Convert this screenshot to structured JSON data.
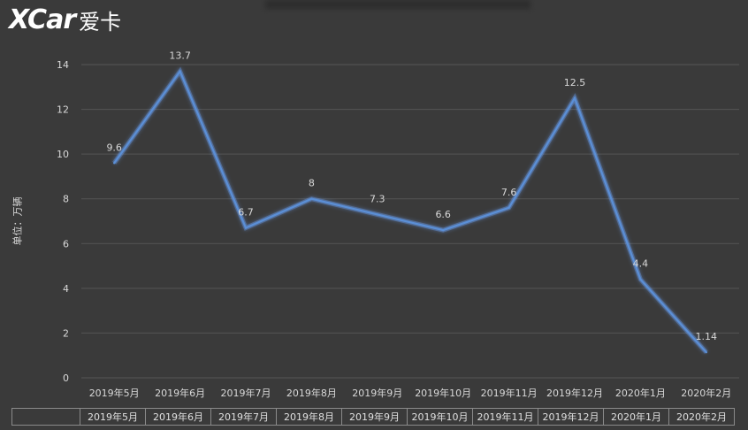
{
  "logo": {
    "mark": "XCar",
    "text": "爱卡"
  },
  "chart_data": {
    "type": "line",
    "title": "",
    "xlabel": "",
    "ylabel": "单位：万辆",
    "ylim": [
      0,
      14
    ],
    "yticks": [
      0,
      2,
      4,
      6,
      8,
      10,
      12,
      14
    ],
    "categories": [
      "2019年5月",
      "2019年6月",
      "2019年7月",
      "2019年8月",
      "2019年9月",
      "2019年10月",
      "2019年11月",
      "2019年12月",
      "2020年1月",
      "2020年2月"
    ],
    "values": [
      9.6,
      13.7,
      6.7,
      8,
      7.3,
      6.6,
      7.6,
      12.5,
      4.4,
      1.14
    ],
    "data_labels": [
      "9.6",
      "13.7",
      "6.7",
      "8",
      "7.3",
      "6.6",
      "7.6",
      "12.5",
      "4.4",
      "1.14"
    ],
    "grid": true,
    "colors": {
      "line": "#5b8fd6",
      "glow": "#6ea6ff",
      "grid": "#555555",
      "text": "#d9d9d9",
      "background": "#3a3a3a"
    }
  },
  "table": {
    "headers": [
      "2019年5月",
      "2019年6月",
      "2019年7月",
      "2019年8月",
      "2019年9月",
      "2019年10月",
      "2019年11月",
      "2019年12月",
      "2020年1月",
      "2020年2月"
    ]
  }
}
